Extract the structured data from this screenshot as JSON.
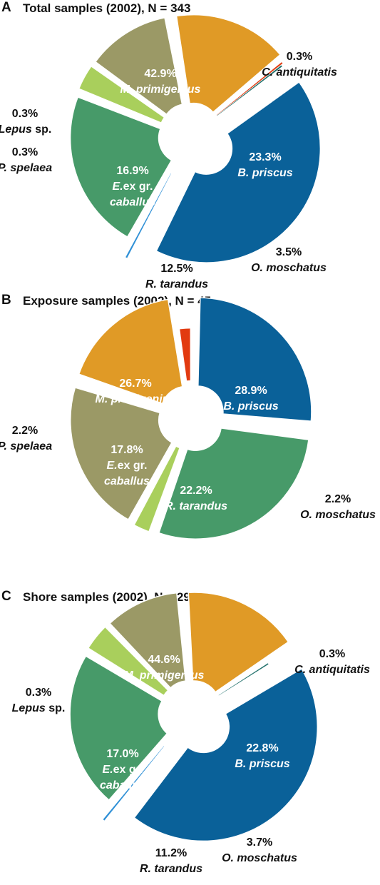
{
  "colors": {
    "M. primigenius": "#0a6199",
    "C. antiquitatis": "#2d8fd6",
    "B. priscus": "#479a69",
    "O. moschatus": "#a9cf5c",
    "R. tarandus": "#9b9966",
    "E.ex gr. caballus": "#e09a26",
    "P. spelaea": "#e23a10",
    "Lepus sp.": "#1f6f6a"
  },
  "chart_data": [
    {
      "type": "pie",
      "panel": "A",
      "title": "Total samples (2002), N = 343",
      "slices": [
        {
          "name": "M. primigenius",
          "value": 42.9,
          "label": "42.9%"
        },
        {
          "name": "C. antiquitatis",
          "value": 0.3,
          "label": "0.3%"
        },
        {
          "name": "B. priscus",
          "value": 23.3,
          "label": "23.3%"
        },
        {
          "name": "O. moschatus",
          "value": 3.5,
          "label": "3.5%"
        },
        {
          "name": "R. tarandus",
          "value": 12.5,
          "label": "12.5%"
        },
        {
          "name": "E.ex gr. caballus",
          "value": 16.9,
          "label": "16.9%"
        },
        {
          "name": "P. spelaea",
          "value": 0.3,
          "label": "0.3%"
        },
        {
          "name": "Lepus sp.",
          "value": 0.3,
          "label": "0.3%"
        }
      ]
    },
    {
      "type": "pie",
      "panel": "B",
      "title": "Exposure samples (2002), N = 45",
      "slices": [
        {
          "name": "M. primigenius",
          "value": 26.7,
          "label": "26.7%"
        },
        {
          "name": "B. priscus",
          "value": 28.9,
          "label": "28.9%"
        },
        {
          "name": "O. moschatus",
          "value": 2.2,
          "label": "2.2%"
        },
        {
          "name": "R. tarandus",
          "value": 22.2,
          "label": "22.2%"
        },
        {
          "name": "E.ex gr. caballus",
          "value": 17.8,
          "label": "17.8%"
        },
        {
          "name": "P. spelaea",
          "value": 2.2,
          "label": "2.2%"
        }
      ]
    },
    {
      "type": "pie",
      "panel": "C",
      "title": "Shore samples (2002), N = 294",
      "slices": [
        {
          "name": "M. primigenius",
          "value": 44.6,
          "label": "44.6%"
        },
        {
          "name": "C. antiquitatis",
          "value": 0.3,
          "label": "0.3%"
        },
        {
          "name": "B. priscus",
          "value": 22.8,
          "label": "22.8%"
        },
        {
          "name": "O. moschatus",
          "value": 3.7,
          "label": "3.7%"
        },
        {
          "name": "R. tarandus",
          "value": 11.2,
          "label": "11.2%"
        },
        {
          "name": "E.ex gr. caballus",
          "value": 17.0,
          "label": "17.0%"
        },
        {
          "name": "Lepus sp.",
          "value": 0.3,
          "label": "0.3%"
        }
      ]
    }
  ]
}
